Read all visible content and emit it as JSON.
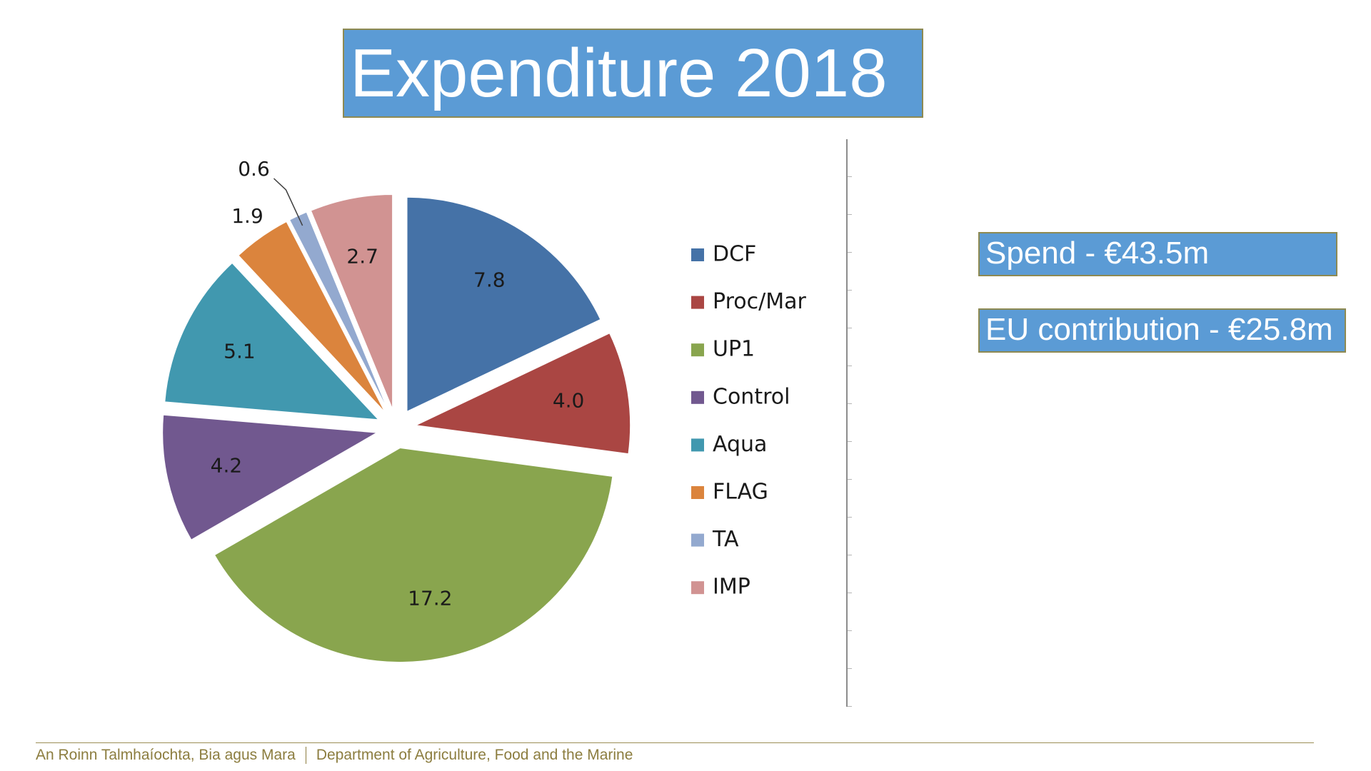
{
  "slide": {
    "title": "Expenditure 2018",
    "spend": "Spend - €43.5m",
    "eu_contribution": "EU contribution - €25.8m",
    "footer_irish": "An Roinn Talmhaíochta, Bia agus Mara",
    "footer_english": "Department of Agriculture, Food and the Marine",
    "colors": {
      "title_bg": "#5b9bd5",
      "footer_text": "#8c7d3f"
    }
  },
  "chart_data": {
    "type": "pie",
    "title": "Expenditure 2018",
    "units": "€m",
    "exploded": true,
    "legend_position": "right",
    "slices": [
      {
        "label": "DCF",
        "value": 7.8,
        "value_label": "7.8",
        "color": "#4572a7"
      },
      {
        "label": "Proc/Mar",
        "value": 4.0,
        "value_label": "4.0",
        "color": "#aa4643"
      },
      {
        "label": "UP1",
        "value": 17.2,
        "value_label": "17.2",
        "color": "#89a54e"
      },
      {
        "label": "Control",
        "value": 4.2,
        "value_label": "4.2",
        "color": "#71588f"
      },
      {
        "label": "Aqua",
        "value": 5.1,
        "value_label": "5.1",
        "color": "#4198af"
      },
      {
        "label": "FLAG",
        "value": 1.9,
        "value_label": "1.9",
        "color": "#db843d"
      },
      {
        "label": "TA",
        "value": 0.6,
        "value_label": "0.6",
        "color": "#93a9cf"
      },
      {
        "label": "IMP",
        "value": 2.7,
        "value_label": "2.7",
        "color": "#d19392"
      }
    ]
  }
}
